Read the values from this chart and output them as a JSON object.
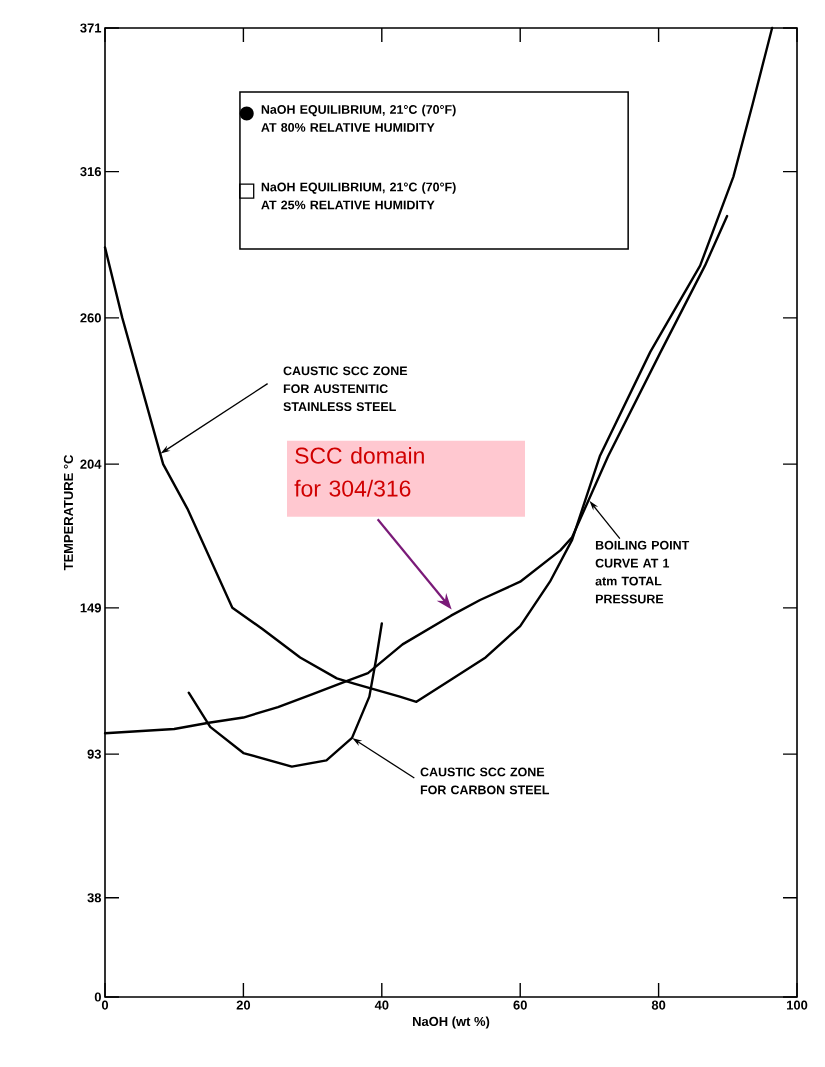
{
  "chart_data": {
    "type": "line",
    "xlabel": "NaOH (wt %)",
    "ylabel": "TEMPERATURE °C",
    "xlim": [
      0,
      100
    ],
    "ylim": [
      0,
      371
    ],
    "xticks": [
      0,
      20,
      40,
      60,
      80,
      100
    ],
    "yticks": [
      0,
      38,
      93,
      149,
      204,
      260,
      316,
      371
    ],
    "series": [
      {
        "color": "#000000",
        "x": [
          0,
          10,
          15,
          20,
          25,
          30,
          35,
          38,
          43,
          50,
          54.2,
          60,
          65.8,
          67.5,
          72.7,
          80.3,
          86.7,
          89.9
        ],
        "values": [
          101,
          102.6,
          105,
          107,
          111,
          116,
          121,
          124,
          135,
          146,
          152,
          159,
          171,
          176,
          207,
          247,
          280,
          299
        ]
      },
      {
        "color": "#000000",
        "x": [
          0,
          2.5,
          8.4,
          11.9,
          18.4,
          22.7,
          28.2,
          33.5,
          36,
          42.6,
          45,
          49.7,
          55,
          60,
          64.3,
          67.5,
          71.5,
          78.8,
          86,
          90.8,
          93.6,
          96.4
        ],
        "values": [
          287,
          260,
          204,
          187,
          149,
          141,
          130,
          122,
          120,
          115,
          113,
          121,
          130,
          142,
          159,
          175,
          207,
          247,
          280,
          314,
          342,
          371
        ]
      },
      {
        "color": "#000000",
        "x": [
          12.1,
          15.2,
          20,
          27,
          32,
          35.7,
          38.2,
          39.2,
          40
        ],
        "values": [
          116.5,
          103.4,
          93.4,
          88.2,
          90.6,
          99.2,
          115,
          129.7,
          143
        ]
      }
    ],
    "annotations": [
      "NaOH EQUILIBRIUM, 21°C (70°F) AT 80% RELATIVE HUMIDITY",
      "NaOH EQUILIBRIUM, 21°C (70°F) AT 25% RELATIVE HUMIDITY",
      {
        "text": "CAUSTIC SCC ZONE FOR AUSTENITIC STAINLESS STEEL",
        "x": 8,
        "y": 208
      },
      {
        "text": "BOILING POINT CURVE AT 1 atm TOTAL PRESSURE",
        "x": 70,
        "y": 190
      },
      {
        "text": "CAUSTIC SCC ZONE FOR CARBON STEEL",
        "x": 35.7,
        "y": 99.2
      },
      "SCC domain for 304/316"
    ]
  }
}
